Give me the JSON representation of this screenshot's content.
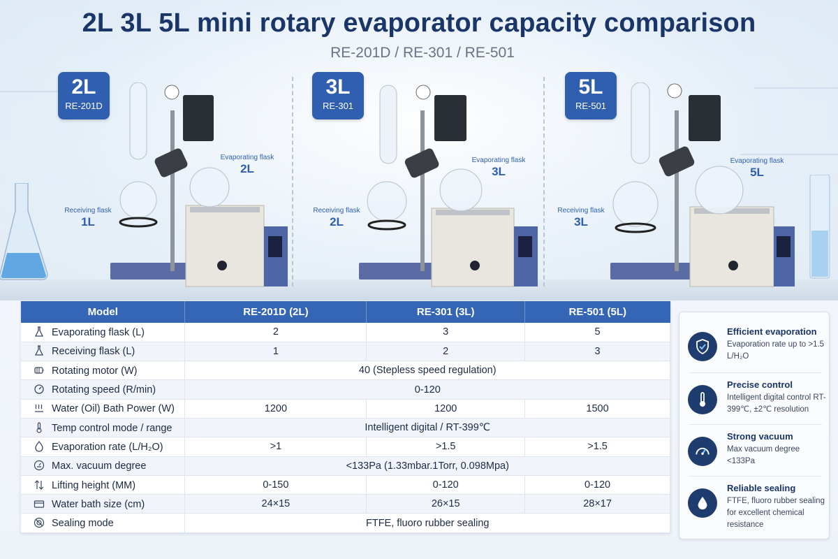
{
  "header": {
    "title": "2L 3L 5L mini rotary evaporator capacity comparison",
    "subtitle": "RE-201D / RE-301 / RE-501"
  },
  "products": [
    {
      "capacity": "2L",
      "model": "RE-201D",
      "evap_label": "Evaporating flask",
      "evap_value": "2L",
      "recv_label": "Receiving flask",
      "recv_value": "1L"
    },
    {
      "capacity": "3L",
      "model": "RE-301",
      "evap_label": "Evaporating flask",
      "evap_value": "3L",
      "recv_label": "Receiving flask",
      "recv_value": "2L"
    },
    {
      "capacity": "5L",
      "model": "RE-501",
      "evap_label": "Evaporating flask",
      "evap_value": "5L",
      "recv_label": "Receiving flask",
      "recv_value": "3L"
    }
  ],
  "table": {
    "headers": [
      "Model",
      "RE-201D (2L)",
      "RE-301 (3L)",
      "RE-501 (5L)"
    ],
    "rows": [
      {
        "icon": "flask-icon",
        "param": "Evaporating flask (L)",
        "values": [
          "2",
          "3",
          "5"
        ]
      },
      {
        "icon": "flask-icon",
        "param": "Receiving flask (L)",
        "values": [
          "1",
          "2",
          "3"
        ]
      },
      {
        "icon": "motor-icon",
        "param": "Rotating motor (W)",
        "merged": "40 (Stepless speed regulation)"
      },
      {
        "icon": "speedometer-icon",
        "param": "Rotating speed (R/min)",
        "merged": "0-120"
      },
      {
        "icon": "heat-waves-icon",
        "param": "Water (Oil) Bath Power (W)",
        "values": [
          "1200",
          "1200",
          "1500"
        ]
      },
      {
        "icon": "thermometer-icon",
        "param": "Temp control mode / range",
        "merged": "Intelligent digital / RT-399℃"
      },
      {
        "icon": "droplet-icon",
        "param": "Evaporation rate (L/H₂O)",
        "values": [
          ">1",
          ">1.5",
          ">1.5"
        ]
      },
      {
        "icon": "vacuum-gauge-icon",
        "param": "Max. vacuum degree",
        "merged": "<133Pa (1.33mbar.1Torr, 0.098Mpa)"
      },
      {
        "icon": "up-down-arrows-icon",
        "param": "Lifting height (MM)",
        "values": [
          "0-150",
          "0-120",
          "0-120"
        ]
      },
      {
        "icon": "bath-icon",
        "param": "Water bath size (cm)",
        "values": [
          "24×15",
          "26×15",
          "28×17"
        ]
      },
      {
        "icon": "seal-icon",
        "param": "Sealing mode",
        "merged": "FTFE, fluoro rubber sealing"
      }
    ]
  },
  "features": [
    {
      "icon": "shield-check-icon",
      "title": "Efficient evaporation",
      "desc": "Evaporation rate up to >1.5 L/H₂O"
    },
    {
      "icon": "thermometer-icon",
      "title": "Precise control",
      "desc": "Intelligent digital control RT-399℃, ±2℃ resolution"
    },
    {
      "icon": "vacuum-gauge-icon",
      "title": "Strong vacuum",
      "desc": "Max vacuum degree <133Pa"
    },
    {
      "icon": "droplet-icon",
      "title": "Reliable sealing",
      "desc": "FTFE, fluoro rubber sealing for excellent chemical resistance"
    }
  ],
  "colors": {
    "brand_blue": "#2f5fae",
    "title_navy": "#1a3567",
    "table_header": "#3466b5"
  }
}
